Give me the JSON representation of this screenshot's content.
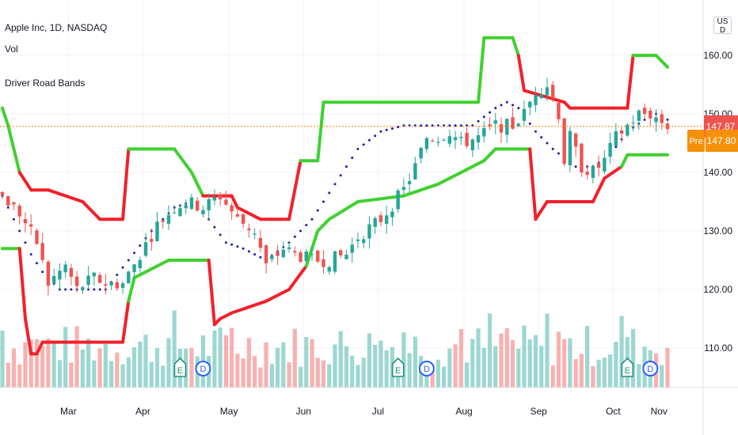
{
  "legend": {
    "title": "Apple Inc, 1D, NASDAQ",
    "vol": "Vol",
    "indicator": "Driver Road Bands"
  },
  "currency": "USD",
  "price_labels": {
    "last_price": "147.87",
    "premarket_tag": "Pre",
    "premarket_price": "147.80"
  },
  "colors": {
    "up_candle": "#26a69a",
    "down_candle": "#ef5350",
    "upper_band_green": "#3fd12f",
    "band_red": "#f2202a",
    "midline": "#1c1ca8",
    "price_line": "#f57c00",
    "last_price_bg": "#ef5350",
    "premarket_bg": "#f5900a",
    "earnings": "#22907e",
    "dividend": "#2962ff"
  },
  "chart_data": {
    "type": "candlestick",
    "y_axis": {
      "ticks": [
        110,
        120,
        130,
        140,
        150,
        160
      ],
      "tick_labels": [
        "110.00",
        "120.00",
        "130.00",
        "140.00",
        "150.00",
        "160.00"
      ],
      "range": [
        102,
        170
      ]
    },
    "x_axis": {
      "labels": [
        "Mar",
        "Apr",
        "May",
        "Jun",
        "Jul",
        "Aug",
        "Sep",
        "Oct",
        "Nov"
      ]
    },
    "last_price": 147.87,
    "premarket_price": 147.8,
    "close_path": [
      [
        0,
        136
      ],
      [
        3,
        133
      ],
      [
        6,
        128
      ],
      [
        8,
        121
      ],
      [
        11,
        124
      ],
      [
        13,
        120
      ],
      [
        16,
        122
      ],
      [
        18,
        121
      ],
      [
        21,
        121
      ],
      [
        24,
        126
      ],
      [
        27,
        131
      ],
      [
        30,
        134
      ],
      [
        32,
        135
      ],
      [
        35,
        134
      ],
      [
        38,
        136
      ],
      [
        41,
        132
      ],
      [
        44,
        130
      ],
      [
        46,
        124
      ],
      [
        49,
        127
      ],
      [
        51,
        126
      ],
      [
        54,
        125
      ],
      [
        57,
        125
      ],
      [
        60,
        126
      ],
      [
        62,
        129
      ],
      [
        66,
        132
      ],
      [
        70,
        137
      ],
      [
        72,
        141
      ],
      [
        74,
        146
      ],
      [
        76,
        146
      ],
      [
        78,
        147
      ],
      [
        80,
        145
      ],
      [
        83,
        146
      ],
      [
        86,
        148
      ],
      [
        89,
        148
      ],
      [
        91,
        150
      ],
      [
        93,
        154
      ],
      [
        95,
        155
      ],
      [
        97,
        150
      ],
      [
        98,
        142
      ],
      [
        99,
        146
      ],
      [
        101,
        141
      ],
      [
        103,
        140
      ],
      [
        105,
        142
      ],
      [
        107,
        146
      ],
      [
        109,
        148
      ],
      [
        111,
        150
      ],
      [
        113,
        150
      ],
      [
        116,
        148
      ]
    ],
    "series": [
      {
        "name": "upper_band",
        "values": [
          [
            0,
            151
          ],
          [
            1,
            148
          ],
          [
            3,
            140
          ],
          [
            5,
            137
          ],
          [
            8,
            137
          ],
          [
            14,
            135
          ],
          [
            17,
            132
          ],
          [
            21,
            132
          ],
          [
            22,
            144
          ],
          [
            30,
            144
          ],
          [
            33,
            140
          ],
          [
            35,
            136
          ],
          [
            40,
            136
          ],
          [
            41,
            134
          ],
          [
            45,
            132
          ],
          [
            50,
            132
          ],
          [
            52,
            142
          ],
          [
            55,
            142
          ],
          [
            56,
            152
          ],
          [
            83,
            152
          ],
          [
            84,
            163
          ],
          [
            89,
            163
          ],
          [
            90,
            160
          ],
          [
            91,
            154
          ],
          [
            98,
            152
          ],
          [
            99,
            151
          ],
          [
            109,
            151
          ],
          [
            110,
            160
          ],
          [
            114,
            160
          ],
          [
            116,
            158
          ]
        ],
        "segment_colors": [
          "green",
          "green",
          "red",
          "red",
          "red",
          "red",
          "red",
          "red",
          "green",
          "green",
          "green",
          "red",
          "red",
          "red",
          "red",
          "red",
          "green",
          "green",
          "green",
          "green",
          "green",
          "green",
          "red",
          "red",
          "red",
          "red",
          "red",
          "green",
          "green",
          "green"
        ]
      },
      {
        "name": "lower_band",
        "values": [
          [
            0,
            127
          ],
          [
            3,
            127
          ],
          [
            4,
            115
          ],
          [
            5,
            109
          ],
          [
            6,
            109
          ],
          [
            7,
            111
          ],
          [
            21,
            111
          ],
          [
            22,
            118
          ],
          [
            23,
            122
          ],
          [
            29,
            125
          ],
          [
            36,
            125
          ],
          [
            37,
            114
          ],
          [
            38,
            115
          ],
          [
            40,
            116
          ],
          [
            46,
            118
          ],
          [
            50,
            120
          ],
          [
            53,
            124
          ],
          [
            55,
            130
          ],
          [
            57,
            132
          ],
          [
            62,
            135
          ],
          [
            70,
            136
          ],
          [
            76,
            138
          ],
          [
            80,
            140
          ],
          [
            84,
            142
          ],
          [
            86,
            144
          ],
          [
            92,
            144
          ],
          [
            93,
            132
          ],
          [
            95,
            135
          ],
          [
            103,
            135
          ],
          [
            105,
            139
          ],
          [
            108,
            141
          ],
          [
            109,
            143
          ],
          [
            116,
            143
          ]
        ]
      },
      {
        "name": "midline",
        "values": [
          [
            0,
            136
          ],
          [
            2,
            132
          ],
          [
            5,
            126
          ],
          [
            7,
            123
          ],
          [
            10,
            120
          ],
          [
            14,
            120
          ],
          [
            18,
            120
          ],
          [
            22,
            125
          ],
          [
            26,
            130
          ],
          [
            30,
            134
          ],
          [
            33,
            135
          ],
          [
            36,
            132
          ],
          [
            39,
            128
          ],
          [
            42,
            127
          ],
          [
            46,
            125
          ],
          [
            50,
            128
          ],
          [
            54,
            132
          ],
          [
            58,
            138
          ],
          [
            62,
            144
          ],
          [
            66,
            147
          ],
          [
            70,
            148
          ],
          [
            74,
            148
          ],
          [
            78,
            148
          ],
          [
            82,
            148
          ],
          [
            86,
            151
          ],
          [
            88,
            152
          ],
          [
            90,
            151
          ],
          [
            93,
            147
          ],
          [
            96,
            144
          ],
          [
            100,
            141
          ],
          [
            103,
            141
          ],
          [
            106,
            143
          ],
          [
            109,
            147
          ],
          [
            112,
            149
          ],
          [
            114,
            150
          ],
          [
            116,
            149
          ]
        ]
      }
    ],
    "events": [
      {
        "type": "earnings",
        "label": "E",
        "bar": 31
      },
      {
        "type": "dividend",
        "label": "D",
        "bar": 35
      },
      {
        "type": "earnings",
        "label": "E",
        "bar": 69
      },
      {
        "type": "dividend",
        "label": "D",
        "bar": 74
      },
      {
        "type": "earnings",
        "label": "E",
        "bar": 109
      },
      {
        "type": "dividend",
        "label": "D",
        "bar": 113
      }
    ]
  }
}
